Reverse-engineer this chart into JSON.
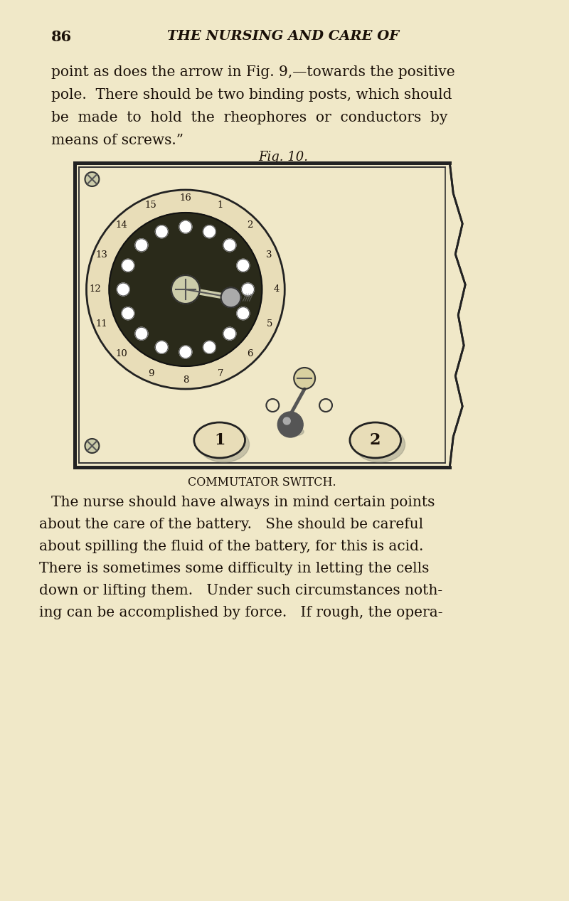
{
  "bg_color": "#f0e8c8",
  "page_number": "86",
  "header_text": "THE NURSING AND CARE OF",
  "para1_lines": [
    "point as does the arrow in Fig. 9,—towards the positive",
    "pole.  There should be two binding posts, which should",
    "be  made  to  hold  the  rheophores  or  conductors  by",
    "means of screws.”"
  ],
  "fig_caption": "Fig. 10.",
  "fig_subcaption": "COMMUTATOR SWITCH.",
  "para2_lines": [
    "The nurse should have always in mind certain points",
    "about the care of the battery.   She should be careful",
    "about spilling the fluid of the battery, for this is acid.",
    "There is sometimes some difficulty in letting the cells",
    "down or lifting them.   Under such circumstances noth-",
    "ing can be accomplished by force.   If rough, the opera-"
  ],
  "dial_numbers": [
    "1",
    "2",
    "3",
    "4",
    "5",
    "6",
    "7",
    "8",
    "9",
    "10",
    "11",
    "12",
    "13",
    "14",
    "15",
    "16"
  ],
  "text_color": "#1a1008",
  "light_text": "#2a1a08"
}
